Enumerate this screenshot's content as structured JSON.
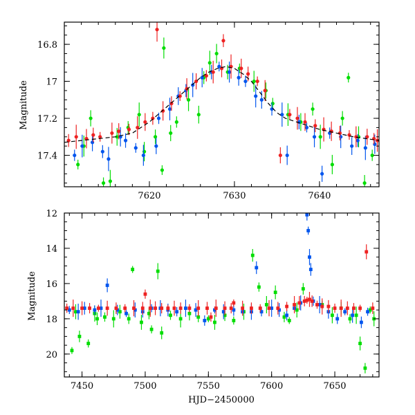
{
  "chart_data": [
    {
      "type": "scatter",
      "title": "",
      "xlabel": "",
      "ylabel": "Magnitude",
      "xlim": [
        7610,
        7647
      ],
      "ylim": [
        17.57,
        16.68
      ],
      "y_inverted": true,
      "xticks": [
        7620,
        7630,
        7640
      ],
      "xtick_labels": [
        "7620",
        "7630",
        "7640"
      ],
      "yticks": [
        16.8,
        17.0,
        17.2,
        17.4
      ],
      "ytick_labels": [
        "16.8",
        "17",
        "17.2",
        "17.4"
      ],
      "grid": false,
      "legend": false,
      "model_curve": {
        "color": "#000000",
        "style": "dashed",
        "x": [
          7610,
          7612,
          7614,
          7616,
          7618,
          7620,
          7621,
          7622,
          7623,
          7624,
          7625,
          7626,
          7627,
          7628,
          7629,
          7630,
          7631,
          7632,
          7633,
          7634,
          7635,
          7636,
          7638,
          7640,
          7642,
          7644,
          7647
        ],
        "y": [
          17.33,
          17.32,
          17.31,
          17.3,
          17.28,
          17.22,
          17.18,
          17.14,
          17.1,
          17.06,
          17.02,
          16.98,
          16.95,
          16.93,
          16.92,
          16.93,
          16.96,
          17.0,
          17.06,
          17.12,
          17.17,
          17.2,
          17.23,
          17.26,
          17.28,
          17.3,
          17.32
        ]
      },
      "series": [
        {
          "color": "#00dd00",
          "x": [
            7611.6,
            7612.3,
            7613.1,
            7614.6,
            7615.4,
            7616.2,
            7617.5,
            7618.8,
            7619.4,
            7620.7,
            7621.5,
            7621.7,
            7622.5,
            7623.2,
            7624.6,
            7625.8,
            7626.4,
            7627.1,
            7627.9,
            7629.2,
            7630.6,
            7632.3,
            7633.7,
            7634.5,
            7636.3,
            7637.8,
            7639.2,
            7640.1,
            7641.5,
            7642.7,
            7643.4,
            7644.6,
            7645.3,
            7646.2
          ],
          "y": [
            17.45,
            17.35,
            17.2,
            17.55,
            17.54,
            17.3,
            17.25,
            17.18,
            17.38,
            17.3,
            17.48,
            16.82,
            17.28,
            17.22,
            17.1,
            17.18,
            16.98,
            16.9,
            16.85,
            16.95,
            16.93,
            17.0,
            17.05,
            17.12,
            17.18,
            17.22,
            17.15,
            17.3,
            17.45,
            17.2,
            16.98,
            17.3,
            17.55,
            17.4
          ]
        },
        {
          "color": "#0055ee",
          "x": [
            7611.2,
            7612.1,
            7613.3,
            7614.5,
            7615.2,
            7616.6,
            7617.2,
            7618.4,
            7619.3,
            7620.8,
            7621.1,
            7622.4,
            7623.4,
            7624.3,
            7625.1,
            7626.2,
            7627.3,
            7628.2,
            7629.4,
            7630.5,
            7631.3,
            7632.5,
            7633.2,
            7634.4,
            7635.6,
            7636.2,
            7637.6,
            7638.5,
            7639.4,
            7640.3,
            7641.2,
            7642.5,
            7643.8,
            7644.5,
            7645.4,
            7646.5
          ],
          "y": [
            17.4,
            17.35,
            17.33,
            17.38,
            17.42,
            17.3,
            17.32,
            17.36,
            17.4,
            17.35,
            17.2,
            17.15,
            17.08,
            17.05,
            17.02,
            16.98,
            16.95,
            16.92,
            16.95,
            16.98,
            17.0,
            17.08,
            17.1,
            17.15,
            17.18,
            17.4,
            17.22,
            17.25,
            17.3,
            17.5,
            17.28,
            17.3,
            17.35,
            17.32,
            17.36,
            17.34
          ]
        },
        {
          "color": "#ee2222",
          "x": [
            7610.5,
            7611.4,
            7612.6,
            7613.4,
            7614.2,
            7615.6,
            7616.4,
            7617.6,
            7618.6,
            7619.5,
            7620.4,
            7620.9,
            7621.6,
            7622.6,
            7623.6,
            7624.4,
            7625.5,
            7626.7,
            7627.5,
            7628.5,
            7628.7,
            7629.6,
            7630.8,
            7631.6,
            7632.7,
            7633.6,
            7635.4,
            7636.5,
            7637.4,
            7638.3,
            7639.5,
            7640.5,
            7641.4,
            7642.4,
            7643.5,
            7644.3,
            7645.6,
            7646.4,
            7646.8
          ],
          "y": [
            17.32,
            17.3,
            17.31,
            17.29,
            17.3,
            17.28,
            17.27,
            17.26,
            17.25,
            17.22,
            17.2,
            16.72,
            17.16,
            17.12,
            17.08,
            17.04,
            17.0,
            16.97,
            16.95,
            16.93,
            16.78,
            16.92,
            16.93,
            16.96,
            17.0,
            17.05,
            17.4,
            17.18,
            17.2,
            17.22,
            17.24,
            17.26,
            17.27,
            17.28,
            17.29,
            17.3,
            17.3,
            17.31,
            17.32
          ]
        }
      ]
    },
    {
      "type": "scatter",
      "title": "",
      "xlabel": "HJD−2450000",
      "ylabel": "Magnitude",
      "xlim": [
        7436,
        7685
      ],
      "ylim": [
        21.3,
        12.0
      ],
      "y_inverted": true,
      "xticks": [
        7450,
        7500,
        7550,
        7600,
        7650
      ],
      "xtick_labels": [
        "7450",
        "7500",
        "7550",
        "7600",
        "7650"
      ],
      "yticks": [
        12,
        14,
        16,
        18,
        20
      ],
      "ytick_labels": [
        "12",
        "14",
        "16",
        "18",
        "20"
      ],
      "grid": false,
      "legend": false,
      "series": [
        {
          "color": "#00dd00",
          "x": [
            7442,
            7445,
            7448,
            7455,
            7460,
            7462,
            7468,
            7475,
            7480,
            7487,
            7490,
            7497,
            7503,
            7505,
            7510,
            7513,
            7520,
            7528,
            7535,
            7542,
            7550,
            7555,
            7563,
            7570,
            7578,
            7585,
            7590,
            7596,
            7603,
            7610,
            7614,
            7620,
            7625,
            7640,
            7648,
            7655,
            7662,
            7667,
            7670,
            7674,
            7678,
            7681
          ],
          "y": [
            19.8,
            17.6,
            19.0,
            19.4,
            17.7,
            18.0,
            17.9,
            18.0,
            17.6,
            18.0,
            15.2,
            18.2,
            17.7,
            18.6,
            15.3,
            18.8,
            17.8,
            18.0,
            17.7,
            17.9,
            18.0,
            18.2,
            17.8,
            18.1,
            17.6,
            14.4,
            16.2,
            17.2,
            16.5,
            17.9,
            18.1,
            17.5,
            16.3,
            17.2,
            17.8,
            17.4,
            18.0,
            17.8,
            19.4,
            20.8,
            17.5,
            18.0
          ]
        },
        {
          "color": "#0055ee",
          "x": [
            7440,
            7447,
            7452,
            7460,
            7465,
            7470,
            7478,
            7485,
            7492,
            7498,
            7505,
            7512,
            7518,
            7525,
            7532,
            7540,
            7547,
            7555,
            7562,
            7570,
            7577,
            7584,
            7588,
            7592,
            7600,
            7606,
            7612,
            7618,
            7623,
            7628,
            7629,
            7630,
            7631,
            7633,
            7638,
            7645,
            7652,
            7658,
            7664,
            7671,
            7676
          ],
          "y": [
            17.5,
            17.6,
            17.4,
            17.5,
            17.4,
            16.1,
            17.5,
            17.7,
            17.5,
            17.6,
            17.4,
            17.4,
            17.5,
            17.6,
            17.4,
            17.5,
            18.1,
            17.5,
            17.6,
            17.5,
            17.6,
            17.6,
            15.1,
            17.6,
            17.4,
            17.5,
            17.8,
            17.4,
            17.1,
            12.1,
            13.0,
            14.5,
            15.2,
            17.0,
            17.2,
            17.6,
            18.0,
            17.6,
            17.8,
            18.2,
            17.6
          ]
        },
        {
          "color": "#ee2222",
          "x": [
            7438,
            7443,
            7450,
            7456,
            7463,
            7470,
            7477,
            7484,
            7491,
            7498,
            7500,
            7504,
            7508,
            7513,
            7518,
            7523,
            7528,
            7535,
            7542,
            7549,
            7552,
            7556,
            7563,
            7568,
            7570,
            7577,
            7584,
            7591,
            7598,
            7605,
            7612,
            7618,
            7622,
            7626,
            7628,
            7630,
            7632,
            7636,
            7640,
            7645,
            7650,
            7655,
            7660,
            7665,
            7670,
            7675,
            7680
          ],
          "y": [
            17.4,
            17.4,
            17.4,
            17.4,
            17.4,
            17.4,
            17.4,
            17.4,
            17.4,
            17.4,
            16.6,
            17.4,
            17.4,
            17.4,
            17.4,
            17.4,
            17.4,
            17.4,
            17.4,
            17.4,
            17.9,
            17.4,
            17.4,
            17.4,
            17.1,
            17.4,
            17.4,
            17.4,
            17.4,
            17.4,
            17.3,
            17.2,
            17.1,
            17.0,
            16.95,
            16.9,
            17.0,
            17.2,
            17.3,
            17.3,
            17.4,
            17.4,
            17.4,
            17.4,
            17.4,
            14.2,
            17.4
          ]
        }
      ]
    }
  ]
}
